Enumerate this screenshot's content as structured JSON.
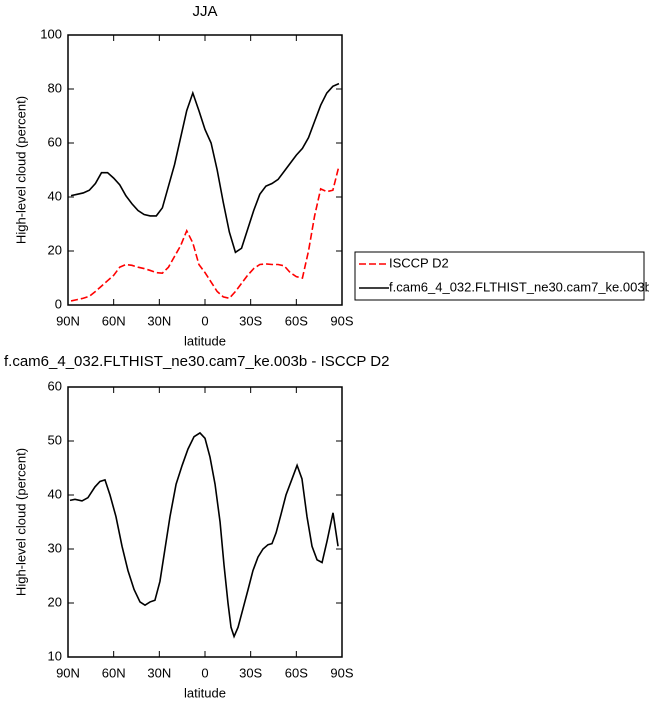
{
  "chart_data": [
    {
      "type": "line",
      "title": "JJA",
      "x_label": "latitude",
      "y_label": "High-level cloud (percent)",
      "x": [
        88,
        84,
        80,
        76,
        72,
        68,
        64,
        60,
        56,
        52,
        48,
        44,
        40,
        36,
        32,
        28,
        24,
        20,
        16,
        12,
        8,
        4,
        0,
        -4,
        -8,
        -12,
        -16,
        -20,
        -24,
        -28,
        -32,
        -36,
        -40,
        -44,
        -48,
        -52,
        -56,
        -60,
        -64,
        -68,
        -72,
        -76,
        -80,
        -84,
        -88
      ],
      "series": [
        {
          "name": "ISCCP D2",
          "color": "#ff0000",
          "line_style": "dashed",
          "values": [
            1.5,
            2,
            2.5,
            3.2,
            5,
            7,
            9,
            11,
            14,
            15,
            14.7,
            14,
            13.5,
            12.8,
            12,
            11.8,
            14,
            18,
            22,
            27.5,
            23,
            15,
            12,
            8.5,
            5,
            3,
            2.5,
            5,
            8,
            11,
            13.5,
            15,
            15.2,
            15,
            15,
            14.5,
            12,
            10.5,
            10,
            20,
            33,
            43,
            42,
            42.5,
            51.5
          ]
        },
        {
          "name": "f.cam6_4_032.FLTHIST_ne30.cam7_ke.003b",
          "color": "#000000",
          "line_style": "solid",
          "values": [
            40.5,
            41,
            41.5,
            42.5,
            45,
            49,
            49,
            47,
            44.5,
            40.5,
            37.5,
            35,
            33.5,
            33,
            33,
            36,
            44,
            52,
            62,
            72,
            78.5,
            72,
            65,
            60,
            50,
            38,
            27,
            19.5,
            21,
            28,
            35,
            41,
            44,
            45,
            46.5,
            49.5,
            52.5,
            55.5,
            58,
            62,
            68,
            74,
            78.5,
            81,
            82
          ]
        }
      ],
      "xlim": [
        90,
        -90
      ],
      "xticks": [
        {
          "value": 90,
          "label": "90N"
        },
        {
          "value": 60,
          "label": "60N"
        },
        {
          "value": 30,
          "label": "30N"
        },
        0,
        {
          "value": -30,
          "label": "30S"
        },
        {
          "value": -60,
          "label": "60S"
        },
        {
          "value": -90,
          "label": "90S"
        }
      ],
      "ylim": [
        0,
        100
      ],
      "yticks": [
        0,
        20,
        40,
        60,
        80,
        100
      ],
      "legend": "right"
    },
    {
      "type": "line",
      "title": "f.cam6_4_032.FLTHIST_ne30.cam7_ke.003b - ISCCP D2",
      "x_label": "latitude",
      "y_label": "High-level cloud (percent)",
      "x": [
        88.7,
        85.4,
        80.8,
        76.9,
        72.3,
        69,
        65.7,
        62.4,
        58.5,
        54.5,
        50.6,
        46.6,
        42.7,
        39.4,
        36.1,
        32.9,
        29.6,
        26.3,
        23,
        19,
        15,
        11.2,
        7.2,
        3.3,
        0,
        -3.3,
        -6.6,
        -9.9,
        -12.5,
        -15.1,
        -17.1,
        -19.1,
        -21.7,
        -25,
        -28.3,
        -31.5,
        -34.8,
        -38.1,
        -41.4,
        -44,
        -46.7,
        -50,
        -53.2,
        -57.2,
        -60.5,
        -63.7,
        -67,
        -70.3,
        -73.6,
        -76.9,
        -80.2,
        -84.1,
        -87.4
      ],
      "color": "#000000",
      "values": [
        39,
        39.2,
        38.9,
        39.5,
        41.5,
        42.5,
        42.8,
        40,
        36,
        30.5,
        26,
        22.5,
        20.2,
        19.6,
        20.2,
        20.5,
        24,
        30,
        36,
        42,
        45.5,
        48.5,
        50.8,
        51.5,
        50.5,
        47,
        42,
        35,
        27,
        20,
        15.5,
        13.8,
        15.5,
        19,
        22.5,
        26,
        28.5,
        30,
        30.8,
        31,
        33,
        36.5,
        40,
        43,
        45.5,
        43,
        36,
        30.5,
        28,
        27.5,
        31.5,
        36.7,
        30.5
      ],
      "xlim": [
        90,
        -90
      ],
      "xticks": [
        {
          "value": 90,
          "label": "90N"
        },
        {
          "value": 60,
          "label": "60N"
        },
        {
          "value": 30,
          "label": "30N"
        },
        0,
        {
          "value": -30,
          "label": "30S"
        },
        {
          "value": -60,
          "label": "60S"
        },
        {
          "value": -90,
          "label": "90S"
        }
      ],
      "ylim": [
        10,
        60
      ],
      "yticks": [
        10,
        20,
        30,
        40,
        50,
        60
      ]
    }
  ]
}
